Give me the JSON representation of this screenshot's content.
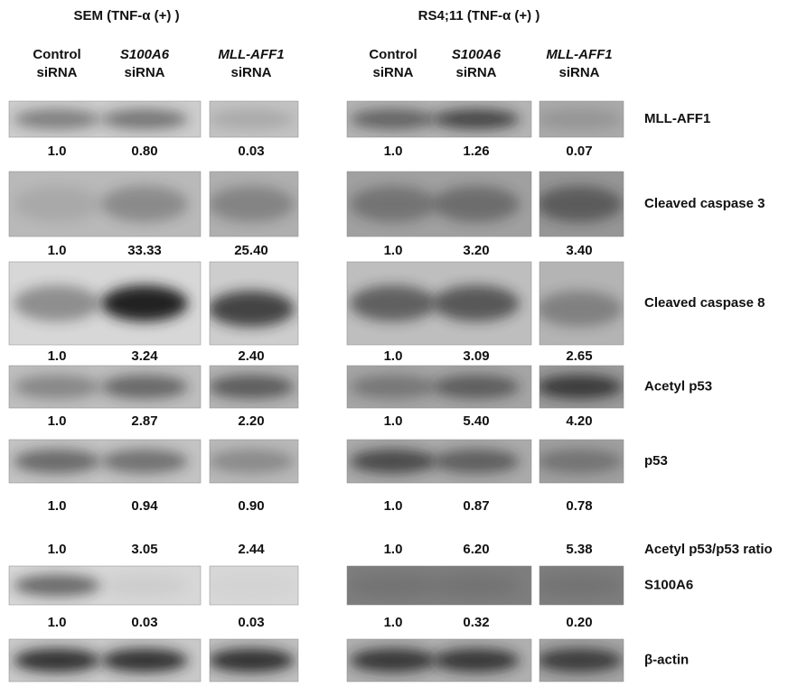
{
  "panels": [
    {
      "title": "SEM (TNF-α (+) )",
      "lanes": [
        {
          "name": "Control",
          "suffix": "siRNA",
          "italic": false
        },
        {
          "name": "S100A6",
          "suffix": "siRNA",
          "italic": true
        },
        {
          "name": "MLL-AFF1",
          "suffix": "siRNA",
          "italic": true
        }
      ]
    },
    {
      "title": "RS4;11 (TNF-α (+) )",
      "lanes": [
        {
          "name": "Control",
          "suffix": "siRNA",
          "italic": false
        },
        {
          "name": "S100A6",
          "suffix": "siRNA",
          "italic": true
        },
        {
          "name": "MLL-AFF1",
          "suffix": "siRNA",
          "italic": true
        }
      ]
    }
  ],
  "rows": [
    {
      "label": "MLL-AFF1",
      "values": [
        [
          "1.0",
          "0.80",
          "0.03"
        ],
        [
          "1.0",
          "1.26",
          "0.07"
        ]
      ]
    },
    {
      "label": "Cleaved caspase 3",
      "values": [
        [
          "1.0",
          "33.33",
          "25.40"
        ],
        [
          "1.0",
          "3.20",
          "3.40"
        ]
      ]
    },
    {
      "label": "Cleaved caspase 8",
      "values": [
        [
          "1.0",
          "3.24",
          "2.40"
        ],
        [
          "1.0",
          "3.09",
          "2.65"
        ]
      ]
    },
    {
      "label": "Acetyl p53",
      "values": [
        [
          "1.0",
          "2.87",
          "2.20"
        ],
        [
          "1.0",
          "5.40",
          "4.20"
        ]
      ]
    },
    {
      "label": "p53",
      "values": [
        [
          "1.0",
          "0.94",
          "0.90"
        ],
        [
          "1.0",
          "0.87",
          "0.78"
        ]
      ]
    },
    {
      "label": "Acetyl p53/p53 ratio",
      "values": [
        [
          "1.0",
          "3.05",
          "2.44"
        ],
        [
          "1.0",
          "6.20",
          "5.38"
        ]
      ]
    },
    {
      "label": "S100A6",
      "values": [
        [
          "1.0",
          "0.03",
          "0.03"
        ],
        [
          "1.0",
          "0.32",
          "0.20"
        ]
      ]
    },
    {
      "label": "β-actin"
    }
  ]
}
